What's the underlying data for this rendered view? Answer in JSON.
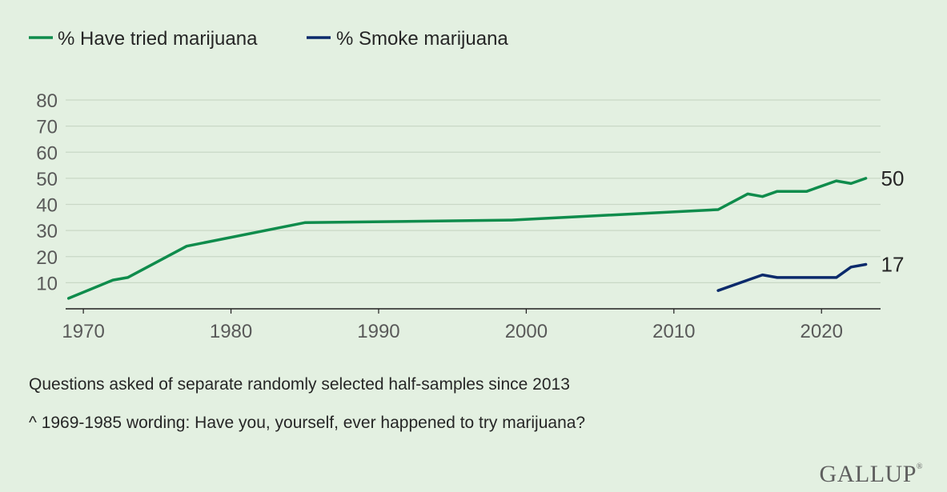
{
  "colors": {
    "background": "#e3f0e1",
    "tried": "#0f8c4c",
    "smoke": "#0b2a6b",
    "grid": "#c9d8c6",
    "axis": "#1f1f1f"
  },
  "chart_data": {
    "type": "line",
    "x_ticks": [
      1970,
      1980,
      1990,
      2000,
      2010,
      2020
    ],
    "y_ticks": [
      10,
      20,
      30,
      40,
      50,
      60,
      70,
      80
    ],
    "xlim": [
      1968.8,
      2024
    ],
    "ylim": [
      0,
      80
    ],
    "grid": true,
    "legend_position": "top-left",
    "series": [
      {
        "id": "tried",
        "name": "% Have tried marijuana",
        "x": [
          1969,
          1972,
          1973,
          1977,
          1985,
          1999,
          2013,
          2015,
          2016,
          2017,
          2019,
          2021,
          2022,
          2023
        ],
        "y": [
          4,
          11,
          12,
          24,
          33,
          34,
          38,
          44,
          43,
          45,
          45,
          49,
          48,
          50
        ],
        "end_label": "50"
      },
      {
        "id": "smoke",
        "name": "% Smoke marijuana",
        "x": [
          2013,
          2015,
          2016,
          2017,
          2019,
          2021,
          2022,
          2023
        ],
        "y": [
          7,
          11,
          13,
          12,
          12,
          12,
          16,
          17
        ],
        "end_label": "17"
      }
    ]
  },
  "notes": {
    "half_samples": "Questions asked of separate randomly selected half-samples since 2013",
    "wording": "^ 1969-1985 wording: Have you, yourself, ever happened to try marijuana?"
  },
  "brand": {
    "name": "GALLUP",
    "mark": "®"
  }
}
